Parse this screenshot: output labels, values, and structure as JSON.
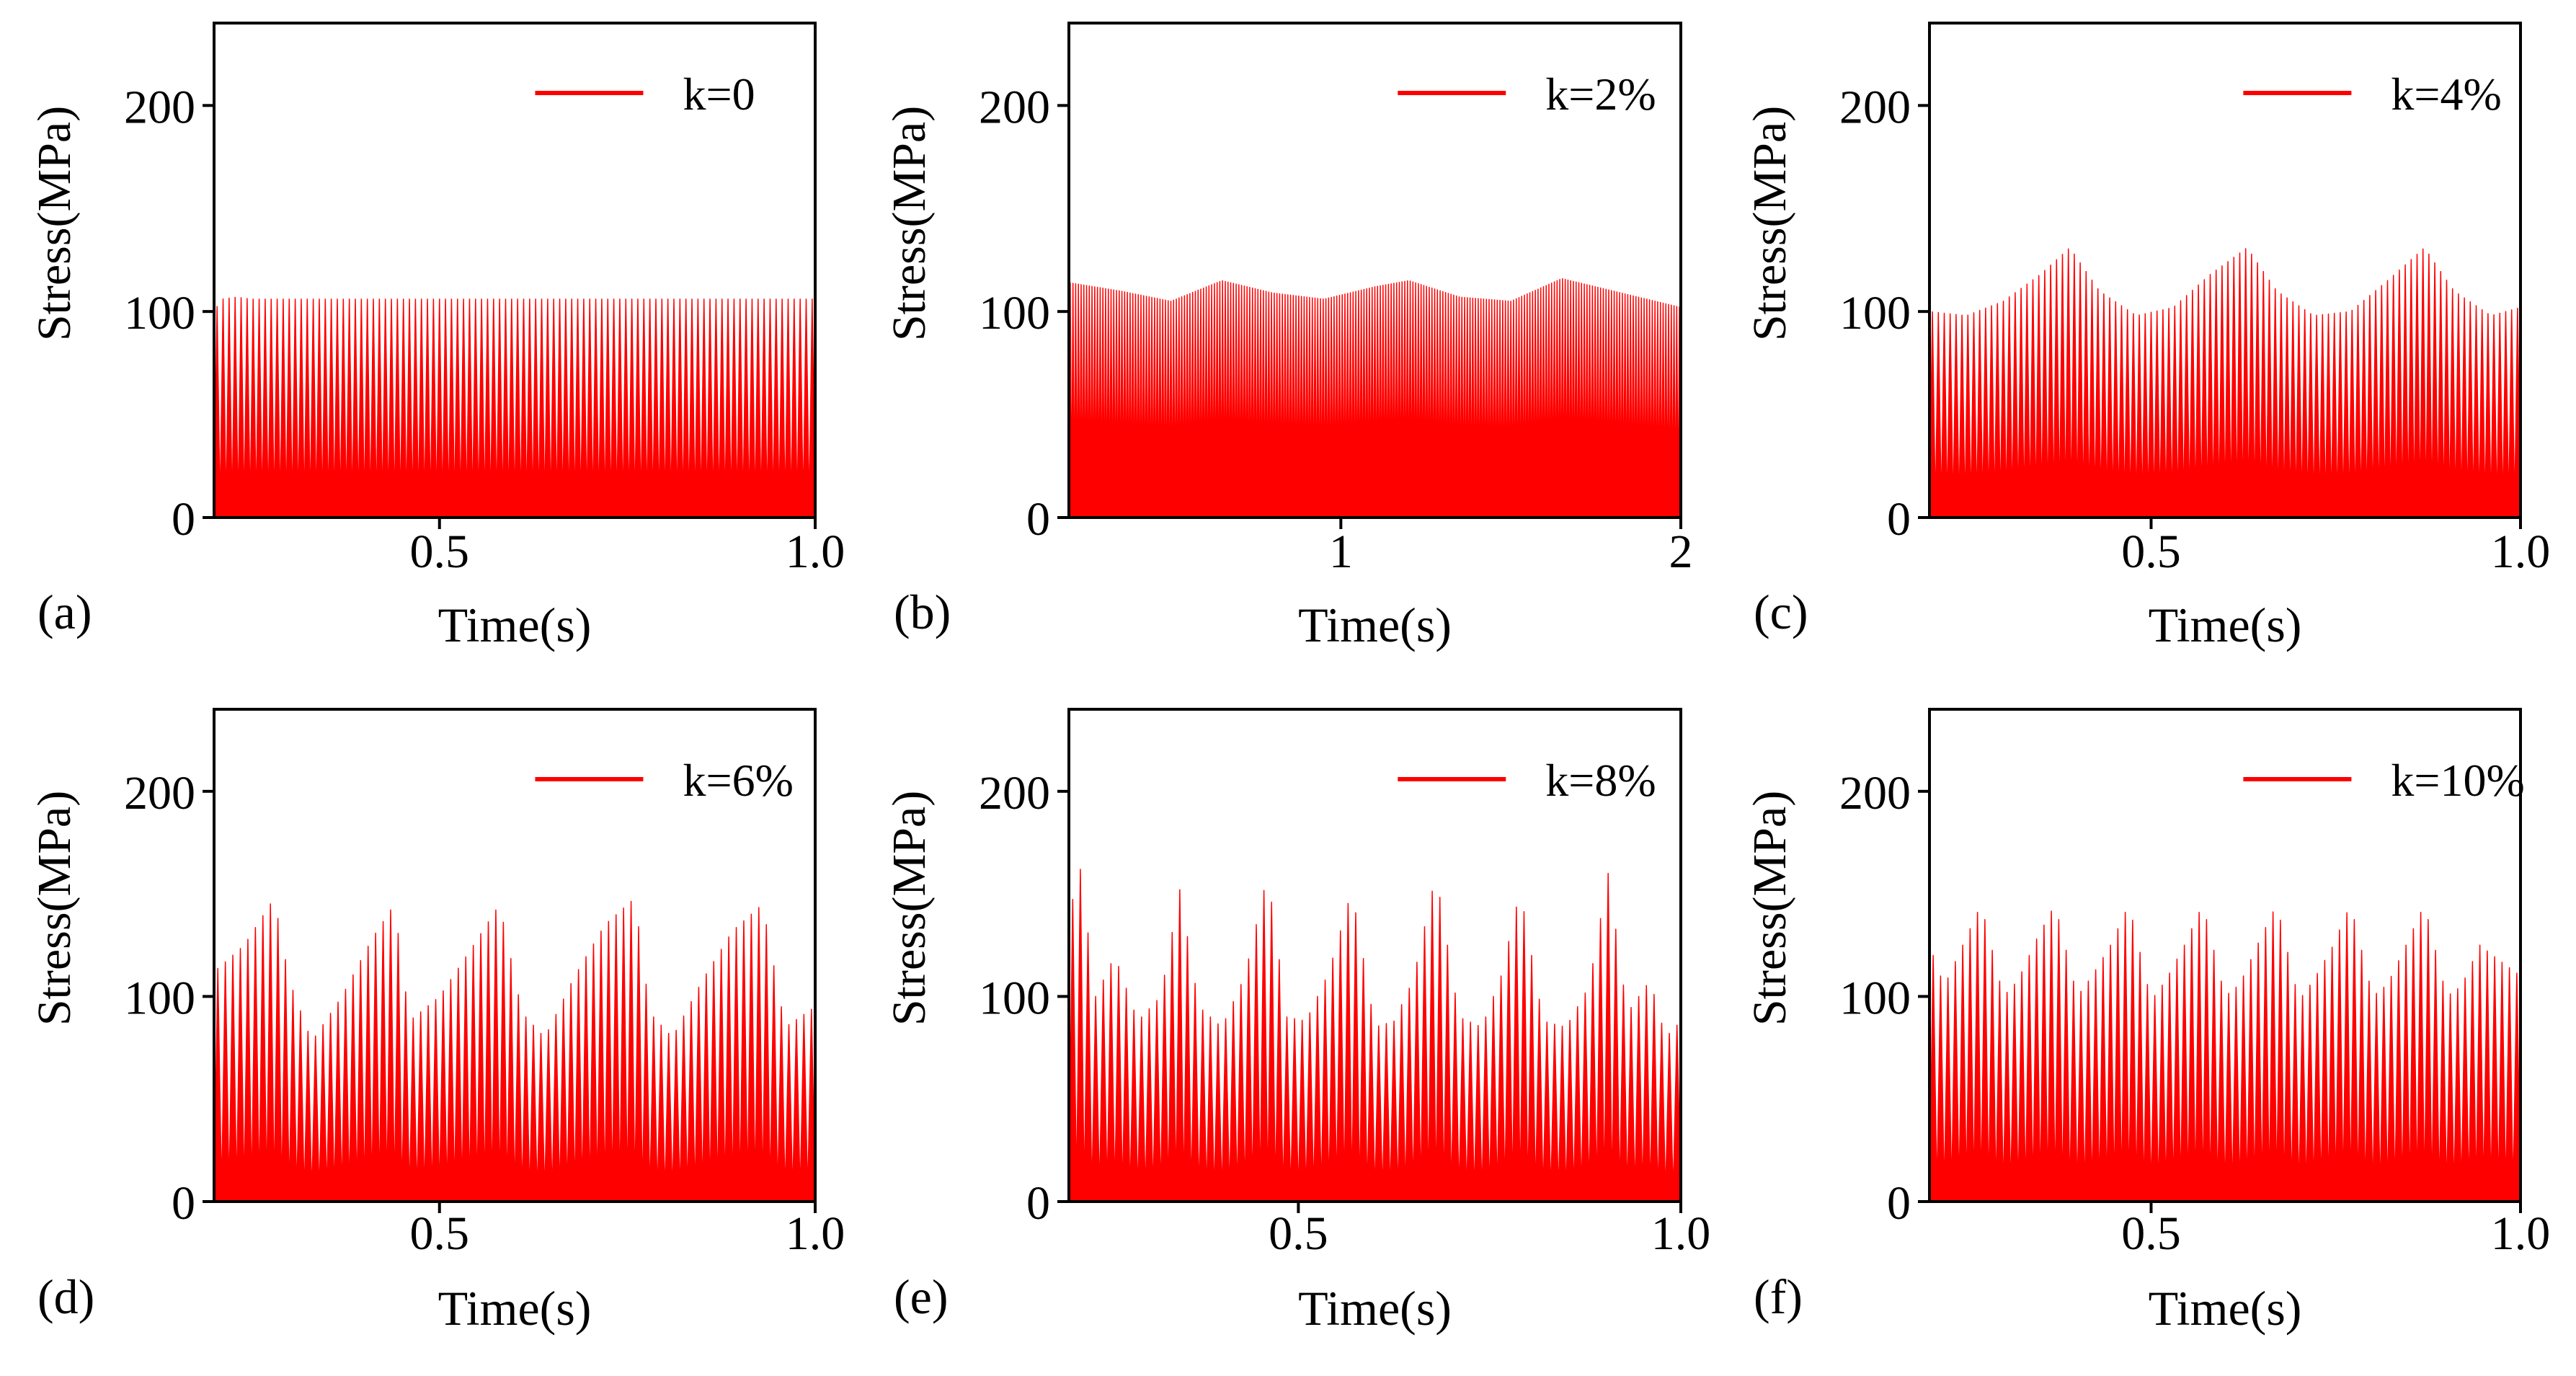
{
  "figure": {
    "series_color": "#ff0000",
    "panels_layout": "2 rows x 3 columns"
  },
  "chart_data": [
    {
      "panel": "a",
      "panel_label": "(a)",
      "type": "line",
      "title": "",
      "xlabel": "Time(s)",
      "ylabel": "Stress(MPa)",
      "xlim": [
        0.2,
        1.0
      ],
      "ylim": [
        0,
        240
      ],
      "xticks": [
        0.5,
        1.0
      ],
      "xtick_labels": [
        "0.5",
        "1.0"
      ],
      "yticks": [
        0,
        100,
        200
      ],
      "ytick_labels": [
        "0",
        "100",
        "200"
      ],
      "legend": "k=0",
      "legend_position": "top-right",
      "grid": false,
      "cycles": 100,
      "envelope": {
        "x": [
          0.2,
          0.21,
          0.23,
          0.25,
          1.0
        ],
        "y": [
          100,
          106,
          107,
          106,
          106
        ]
      }
    },
    {
      "panel": "b",
      "panel_label": "(b)",
      "type": "line",
      "title": "",
      "xlabel": "Time(s)",
      "ylabel": "Stress(MPa)",
      "xlim": [
        0.2,
        2.0
      ],
      "ylim": [
        0,
        240
      ],
      "xticks": [
        1,
        2
      ],
      "xtick_labels": [
        "1",
        "2"
      ],
      "yticks": [
        0,
        100,
        200
      ],
      "ytick_labels": [
        "0",
        "100",
        "200"
      ],
      "legend": "k=2%",
      "legend_position": "top-right",
      "grid": false,
      "cycles": 225,
      "envelope": {
        "x": [
          0.2,
          0.35,
          0.5,
          0.65,
          0.8,
          0.95,
          1.1,
          1.2,
          1.35,
          1.5,
          1.65,
          1.8,
          1.95,
          2.0
        ],
        "y": [
          114,
          110,
          105,
          115,
          109,
          106,
          112,
          115,
          107,
          105,
          116,
          110,
          104,
          102
        ]
      }
    },
    {
      "panel": "c",
      "panel_label": "(c)",
      "type": "line",
      "title": "",
      "xlabel": "Time(s)",
      "ylabel": "Stress(MPa)",
      "xlim": [
        0.2,
        1.0
      ],
      "ylim": [
        0,
        240
      ],
      "xticks": [
        0.5,
        1.0
      ],
      "xtick_labels": [
        "0.5",
        "1.0"
      ],
      "yticks": [
        0,
        100,
        200
      ],
      "ytick_labels": [
        "0",
        "100",
        "200"
      ],
      "legend": "k=4%",
      "legend_position": "top-right",
      "grid": false,
      "cycles": 100,
      "envelope": {
        "x": [
          0.2,
          0.25,
          0.3,
          0.35,
          0.39,
          0.43,
          0.48,
          0.53,
          0.58,
          0.63,
          0.67,
          0.72,
          0.77,
          0.82,
          0.87,
          0.91,
          0.96,
          1.0
        ],
        "y": [
          100,
          98,
          105,
          118,
          131,
          110,
          98,
          102,
          118,
          131,
          110,
          98,
          100,
          115,
          131,
          110,
          98,
          102
        ]
      }
    },
    {
      "panel": "d",
      "panel_label": "(d)",
      "type": "line",
      "title": "",
      "xlabel": "Time(s)",
      "ylabel": "Stress(MPa)",
      "xlim": [
        0.2,
        1.0
      ],
      "ylim": [
        0,
        240
      ],
      "xticks": [
        0.5,
        1.0
      ],
      "xtick_labels": [
        "0.5",
        "1.0"
      ],
      "yticks": [
        0,
        100,
        200
      ],
      "ytick_labels": [
        "0",
        "100",
        "200"
      ],
      "legend": "k=6%",
      "legend_position": "top-right",
      "grid": false,
      "cycles": 80,
      "envelope": {
        "x": [
          0.2,
          0.24,
          0.28,
          0.3,
          0.33,
          0.37,
          0.41,
          0.44,
          0.46,
          0.5,
          0.54,
          0.58,
          0.61,
          0.64,
          0.68,
          0.72,
          0.76,
          0.78,
          0.81,
          0.85,
          0.89,
          0.93,
          0.96,
          1.0
        ],
        "y": [
          112,
          125,
          148,
          108,
          78,
          100,
          128,
          145,
          88,
          100,
          122,
          145,
          92,
          80,
          110,
          135,
          148,
          92,
          80,
          108,
          132,
          145,
          85,
          95
        ]
      }
    },
    {
      "panel": "e",
      "panel_label": "(e)",
      "type": "line",
      "title": "",
      "xlabel": "Time(s)",
      "ylabel": "Stress(MPa)",
      "xlim": [
        0.2,
        1.0
      ],
      "ylim": [
        0,
        240
      ],
      "xticks": [
        0.5,
        1.0
      ],
      "xtick_labels": [
        "0.5",
        "1.0"
      ],
      "yticks": [
        0,
        100,
        200
      ],
      "ytick_labels": [
        "0",
        "100",
        "200"
      ],
      "legend": "k=8%",
      "legend_position": "top-right",
      "grid": false,
      "cycles": 80,
      "envelope": {
        "x": [
          0.2,
          0.215,
          0.235,
          0.26,
          0.29,
          0.32,
          0.345,
          0.37,
          0.4,
          0.43,
          0.46,
          0.485,
          0.51,
          0.54,
          0.57,
          0.6,
          0.625,
          0.65,
          0.68,
          0.71,
          0.74,
          0.765,
          0.79,
          0.82,
          0.85,
          0.88,
          0.905,
          0.93,
          0.96,
          0.98,
          1.0
        ],
        "y": [
          140,
          162,
          100,
          120,
          88,
          100,
          152,
          95,
          85,
          110,
          160,
          90,
          88,
          112,
          152,
          85,
          88,
          108,
          160,
          90,
          85,
          110,
          152,
          88,
          85,
          105,
          160,
          92,
          108,
          80,
          88
        ]
      }
    },
    {
      "panel": "f",
      "panel_label": "(f)",
      "type": "line",
      "title": "",
      "xlabel": "Time(s)",
      "ylabel": "Stress(MPa)",
      "xlim": [
        0.2,
        1.0
      ],
      "ylim": [
        0,
        240
      ],
      "xticks": [
        0.5,
        1.0
      ],
      "xtick_labels": [
        "0.5",
        "1.0"
      ],
      "yticks": [
        0,
        100,
        200
      ],
      "ytick_labels": [
        "0",
        "100",
        "200"
      ],
      "legend": "k=10%",
      "legend_position": "top-right",
      "grid": false,
      "cycles": 80,
      "envelope": {
        "x": [
          0.2,
          0.22,
          0.245,
          0.27,
          0.3,
          0.32,
          0.345,
          0.37,
          0.4,
          0.42,
          0.445,
          0.47,
          0.5,
          0.52,
          0.545,
          0.57,
          0.6,
          0.62,
          0.645,
          0.67,
          0.7,
          0.72,
          0.745,
          0.77,
          0.8,
          0.82,
          0.845,
          0.87,
          0.9,
          0.92,
          0.945,
          0.97,
          1.0
        ],
        "y": [
          125,
          105,
          125,
          145,
          100,
          108,
          128,
          145,
          100,
          110,
          125,
          145,
          98,
          108,
          125,
          145,
          100,
          106,
          126,
          145,
          98,
          108,
          124,
          145,
          100,
          106,
          125,
          145,
          100,
          105,
          125,
          118,
          110
        ]
      }
    }
  ]
}
